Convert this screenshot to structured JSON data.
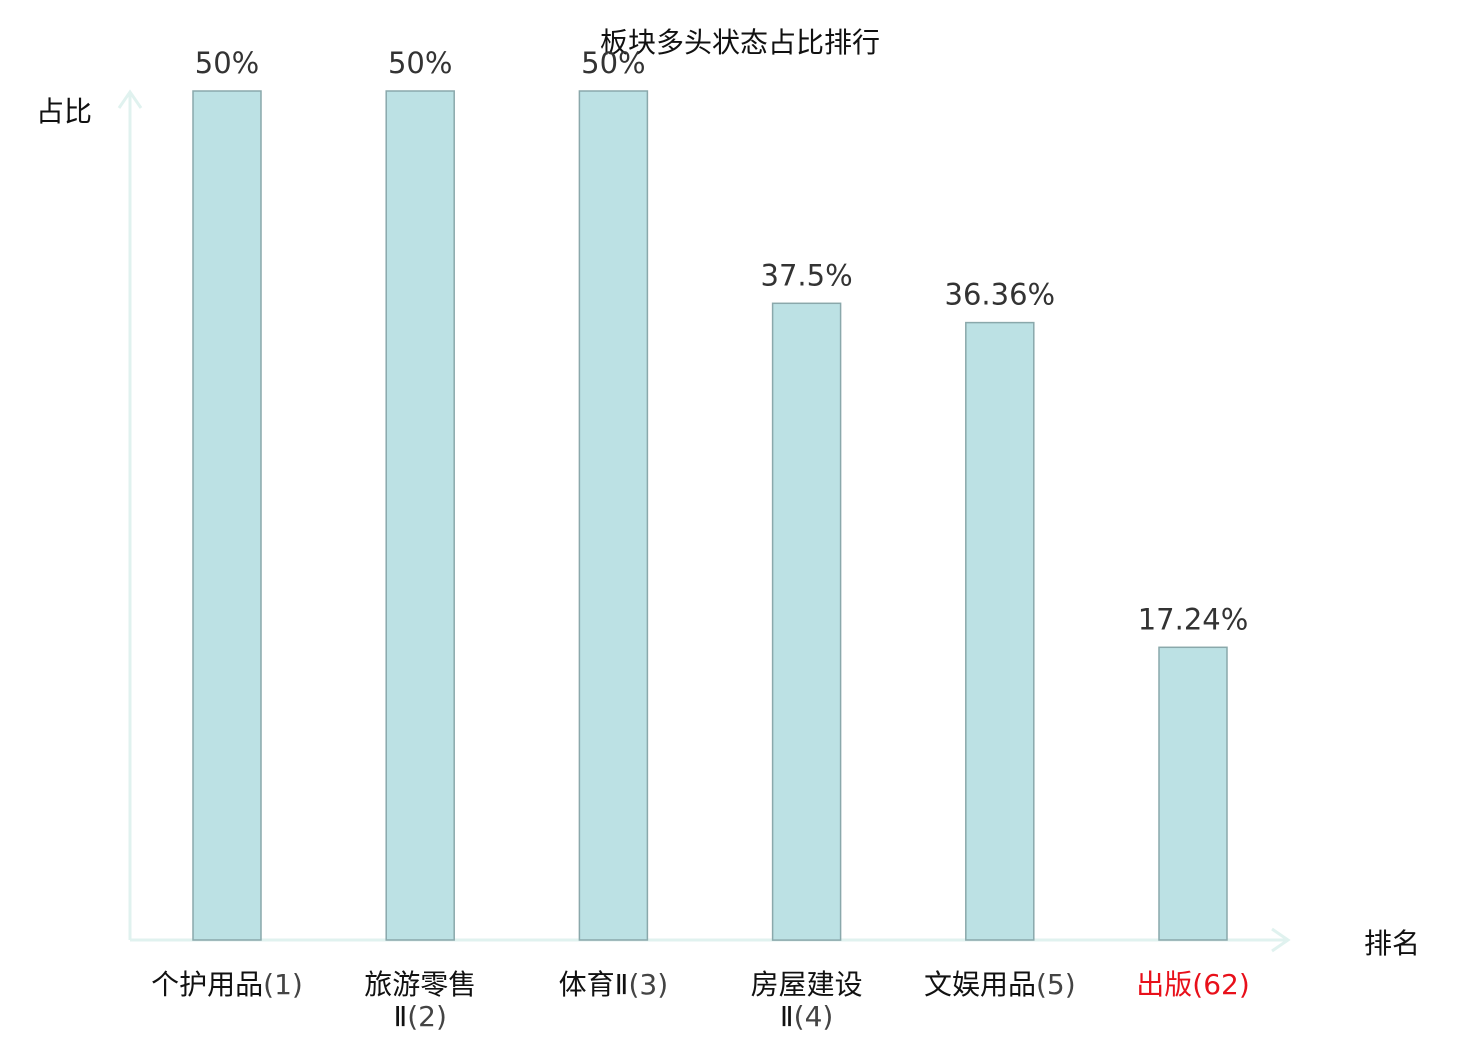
{
  "chart_data": {
    "type": "bar",
    "title": "板块多头状态占比排行",
    "ylabel": "占比",
    "xlabel": "排名",
    "ylim": [
      0,
      50
    ],
    "grid": false,
    "legend": "none",
    "categories": [
      {
        "name": "个护用品",
        "name_lines": [
          "个护用品"
        ],
        "rank": "(1)",
        "highlight": false
      },
      {
        "name": "旅游零售Ⅱ",
        "name_lines": [
          "旅游零售",
          "Ⅱ"
        ],
        "rank": "(2)",
        "highlight": false
      },
      {
        "name": "体育Ⅱ",
        "name_lines": [
          "体育Ⅱ"
        ],
        "rank": "(3)",
        "highlight": false
      },
      {
        "name": "房屋建设Ⅱ",
        "name_lines": [
          "房屋建设",
          "Ⅱ"
        ],
        "rank": "(4)",
        "highlight": false
      },
      {
        "name": "文娱用品",
        "name_lines": [
          "文娱用品"
        ],
        "rank": "(5)",
        "highlight": false
      },
      {
        "name": "出版",
        "name_lines": [
          "出版"
        ],
        "rank": "(62)",
        "highlight": true
      }
    ],
    "values": [
      50,
      50,
      50,
      37.5,
      36.36,
      17.24
    ],
    "value_labels": [
      "50%",
      "50%",
      "50%",
      "37.5%",
      "36.36%",
      "17.24%"
    ]
  },
  "colors": {
    "bar_fill": "#bce1e4",
    "bar_stroke": "#8aa8ab",
    "axis": "#e0f2ef",
    "label_text": "#333333",
    "tick_text": "#111111",
    "rank_text": "#444444",
    "highlight": "#e8101a"
  }
}
